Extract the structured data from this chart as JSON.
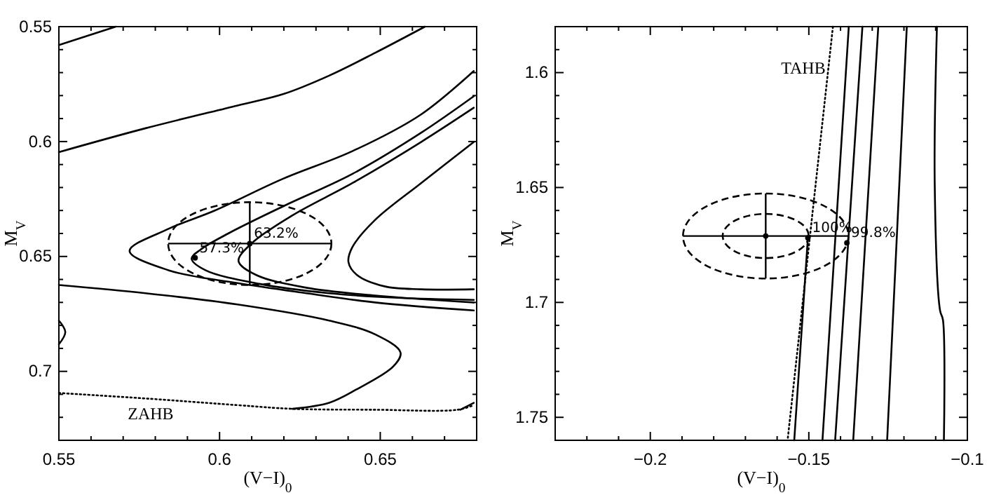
{
  "chart_data": [
    {
      "type": "line",
      "xlabel": "(V−I)$_{0}$",
      "ylabel": "M$_{V}$",
      "xlim": [
        0.55,
        0.68
      ],
      "ylim": [
        0.73,
        0.55
      ],
      "xticks": [
        0.55,
        {
          "value": 0.56,
          "label": null
        },
        {
          "value": 0.57,
          "label": null
        },
        {
          "value": 0.58,
          "label": null
        },
        {
          "value": 0.59,
          "label": null
        },
        0.6,
        {
          "value": 0.61,
          "label": null
        },
        {
          "value": 0.62,
          "label": null
        },
        {
          "value": 0.63,
          "label": null
        },
        {
          "value": 0.64,
          "label": null
        },
        0.65,
        {
          "value": 0.66,
          "label": null
        },
        {
          "value": 0.67,
          "label": null
        },
        {
          "value": 0.68,
          "label": null
        }
      ],
      "yticks": [
        0.55,
        {
          "value": 0.56,
          "label": null
        },
        {
          "value": 0.57,
          "label": null
        },
        {
          "value": 0.58,
          "label": null
        },
        {
          "value": 0.59,
          "label": null
        },
        0.6,
        {
          "value": 0.61,
          "label": null
        },
        {
          "value": 0.62,
          "label": null
        },
        {
          "value": 0.63,
          "label": null
        },
        {
          "value": 0.64,
          "label": null
        },
        0.65,
        {
          "value": 0.66,
          "label": null
        },
        {
          "value": 0.67,
          "label": null
        },
        {
          "value": 0.68,
          "label": null
        },
        {
          "value": 0.69,
          "label": null
        },
        0.7,
        {
          "value": 0.71,
          "label": null
        },
        {
          "value": 0.72,
          "label": null
        },
        {
          "value": 0.73,
          "label": null
        }
      ],
      "series": [
        {
          "line_style": "solid",
          "color": "#000000",
          "x": [
            0.55,
            0.5677
          ],
          "values": [
            0.558,
            0.55
          ]
        },
        {
          "line_style": "solid",
          "color": "#000000",
          "x": [
            0.55,
            0.577,
            0.6056,
            0.6199,
            0.6341,
            0.6484,
            0.6639
          ],
          "values": [
            0.6046,
            0.5942,
            0.5843,
            0.5793,
            0.5713,
            0.5614,
            0.55
          ]
        },
        {
          "line_style": "solid",
          "color": "#000000",
          "x": [
            0.6791,
            0.6627,
            0.6413,
            0.6199,
            0.5984,
            0.5841,
            0.572,
            0.5841,
            0.6056,
            0.627,
            0.6484,
            0.6791
          ],
          "values": [
            0.5693,
            0.5882,
            0.6042,
            0.6161,
            0.6301,
            0.638,
            0.6476,
            0.656,
            0.6616,
            0.666,
            0.67,
            0.6735
          ]
        },
        {
          "line_style": "solid",
          "color": "#000000",
          "x": [
            0.6791,
            0.6627,
            0.6413,
            0.6199,
            0.6027,
            0.5941,
            0.5913,
            0.5956,
            0.6127,
            0.6341,
            0.6556,
            0.6791
          ],
          "values": [
            0.5803,
            0.5962,
            0.6141,
            0.6281,
            0.64,
            0.647,
            0.651,
            0.656,
            0.662,
            0.666,
            0.668,
            0.6689
          ]
        },
        {
          "line_style": "solid",
          "color": "#000000",
          "x": [
            0.6791,
            0.6627,
            0.6413,
            0.6227,
            0.6099,
            0.6059,
            0.6113,
            0.627,
            0.6484,
            0.6791
          ],
          "values": [
            0.5853,
            0.6002,
            0.6181,
            0.6321,
            0.6444,
            0.652,
            0.658,
            0.6636,
            0.667,
            0.67
          ]
        },
        {
          "line_style": "solid",
          "color": "#000000",
          "x": [
            0.6791,
            0.6627,
            0.6484,
            0.6413,
            0.6401,
            0.6427,
            0.6513,
            0.6627,
            0.6791
          ],
          "values": [
            0.6002,
            0.6181,
            0.6341,
            0.646,
            0.6524,
            0.658,
            0.663,
            0.6643,
            0.6643
          ]
        },
        {
          "line_style": "solid",
          "color": "#000000",
          "x": [
            0.55,
            0.577,
            0.6056,
            0.6341,
            0.6484,
            0.6563,
            0.6541,
            0.6427,
            0.6341,
            0.6227
          ],
          "values": [
            0.6624,
            0.666,
            0.6709,
            0.6779,
            0.6839,
            0.6918,
            0.6978,
            0.7078,
            0.7137,
            0.7163
          ]
        },
        {
          "line_style": "solid",
          "color": "#000000",
          "x": [
            0.55,
            0.552,
            0.55
          ],
          "values": [
            0.6779,
            0.6829,
            0.6882
          ]
        },
        {
          "line_style": "dotted",
          "color": "#000000",
          "x": [
            0.55,
            0.577,
            0.6056,
            0.6227,
            0.6484,
            0.6741,
            0.6791
          ],
          "values": [
            0.7094,
            0.7118,
            0.7147,
            0.7163,
            0.7167,
            0.7167,
            0.7147
          ]
        },
        {
          "line_style": "solid",
          "color": "#000000",
          "x": [
            0.6749,
            0.6791
          ],
          "values": [
            0.7167,
            0.7137
          ]
        },
        {
          "type": "scatter",
          "marker": "circle",
          "color": "#000000",
          "x": [
            0.6094,
            0.5924
          ],
          "values": [
            0.6444,
            0.6506
          ],
          "errors": [
            0.018,
            null
          ],
          "xerrors": [
            0.0254,
            null
          ]
        }
      ],
      "annotations": [
        {
          "text": "63.2%",
          "x": 0.6094,
          "y": 0.6444
        },
        {
          "text": "57.3%",
          "x": 0.5924,
          "y": 0.6506
        },
        {
          "text": "ZAHB",
          "x": 0.587,
          "y": 0.7128
        }
      ]
    },
    {
      "type": "line",
      "xlabel": "(V−I)$_{0}$",
      "ylabel": "M$_{V}$",
      "xlim": [
        -0.23,
        -0.1
      ],
      "ylim": [
        1.76,
        1.58
      ],
      "xticks": [
        {
          "value": -0.23,
          "label": null
        },
        {
          "value": -0.22,
          "label": null
        },
        {
          "value": -0.21,
          "label": null
        },
        {
          "value": -0.2,
          "label": "−0.2"
        },
        {
          "value": -0.19,
          "label": null
        },
        {
          "value": -0.18,
          "label": null
        },
        {
          "value": -0.17,
          "label": null
        },
        {
          "value": -0.16,
          "label": null
        },
        {
          "value": -0.15,
          "label": "−0.15"
        },
        {
          "value": -0.14,
          "label": null
        },
        {
          "value": -0.13,
          "label": null
        },
        {
          "value": -0.12,
          "label": null
        },
        {
          "value": -0.11,
          "label": null
        },
        {
          "value": -0.1,
          "label": "−0.1"
        }
      ],
      "yticks": [
        {
          "value": 1.58,
          "label": null
        },
        {
          "value": 1.59,
          "label": null
        },
        1.6,
        {
          "value": 1.61,
          "label": null
        },
        {
          "value": 1.62,
          "label": null
        },
        {
          "value": 1.63,
          "label": null
        },
        {
          "value": 1.64,
          "label": null
        },
        1.65,
        {
          "value": 1.66,
          "label": null
        },
        {
          "value": 1.67,
          "label": null
        },
        {
          "value": 1.68,
          "label": null
        },
        {
          "value": 1.69,
          "label": null
        },
        1.7,
        {
          "value": 1.71,
          "label": null
        },
        {
          "value": 1.72,
          "label": null
        },
        {
          "value": 1.73,
          "label": null
        },
        {
          "value": 1.74,
          "label": null
        },
        1.75,
        {
          "value": 1.76,
          "label": null
        }
      ],
      "series": [
        {
          "line_style": "dotted",
          "color": "#000000",
          "x": [
            -0.1424,
            -0.1567
          ],
          "values": [
            1.58,
            1.76
          ]
        },
        {
          "line_style": "solid",
          "color": "#000000",
          "x": [
            -0.1546,
            -0.1503
          ],
          "values": [
            1.76,
            1.6719
          ]
        },
        {
          "line_style": "solid",
          "color": "#000000",
          "x": [
            -0.1457,
            -0.1374
          ],
          "values": [
            1.76,
            1.58
          ]
        },
        {
          "line_style": "solid",
          "color": "#000000",
          "x": [
            -0.1417,
            -0.1331
          ],
          "values": [
            1.76,
            1.58
          ]
        },
        {
          "line_style": "solid",
          "color": "#000000",
          "x": [
            -0.136,
            -0.1281
          ],
          "values": [
            1.76,
            1.58
          ]
        },
        {
          "line_style": "solid",
          "color": "#000000",
          "x": [
            -0.1253,
            -0.1191
          ],
          "values": [
            1.76,
            1.58
          ]
        },
        {
          "line_style": "solid",
          "color": "#000000",
          "x": [
            -0.1074,
            -0.1077,
            -0.1086,
            -0.1103,
            -0.1096
          ],
          "values": [
            1.76,
            1.7076,
            1.7036,
            1.6478,
            1.58
          ]
        },
        {
          "type": "scatter",
          "marker": "circle",
          "color": "#000000",
          "x": [
            -0.1636
          ],
          "values": [
            1.6711
          ],
          "errors": [
            0.0185
          ],
          "xerrors": [
            0.0261
          ]
        },
        {
          "type": "scatter",
          "marker": "circle",
          "color": "#000000",
          "x": [
            -0.1503,
            -0.138
          ],
          "values": [
            1.6719,
            1.6741
          ]
        }
      ],
      "annotations": [
        {
          "text": "100%",
          "x": -0.1503,
          "y": 1.6719
        },
        {
          "text": "99.8%",
          "x": -0.138,
          "y": 1.6741
        },
        {
          "text": "TAHB",
          "x": -0.1434,
          "y": 1.5926
        }
      ]
    }
  ]
}
